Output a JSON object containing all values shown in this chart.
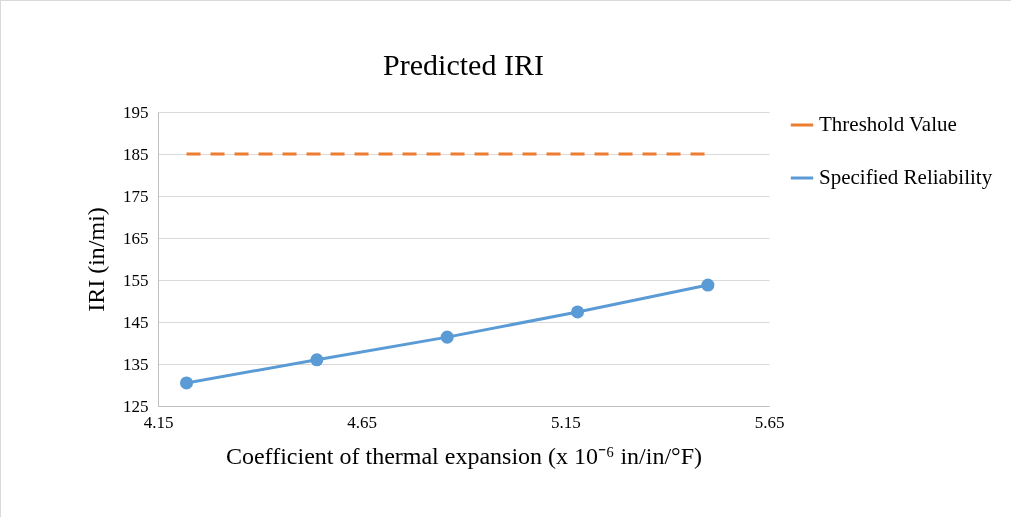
{
  "chart_data": {
    "type": "line",
    "title": "Predicted IRI",
    "xlabel": "Coefficient of thermal expansion (x 10⁻⁶ in/in/°F)",
    "ylabel": "IRI (in/mi)",
    "series": [
      {
        "name": "Threshold Value",
        "color": "#ed7d31",
        "line_style": "dashed",
        "marker": "none",
        "x": [
          4.22,
          4.54,
          4.86,
          5.18,
          5.5
        ],
        "values": [
          185,
          185,
          185,
          185,
          185
        ]
      },
      {
        "name": "Specified Reliability",
        "color": "#5b9bd5",
        "line_style": "solid",
        "marker": "circle",
        "x": [
          4.22,
          4.54,
          4.86,
          5.18,
          5.5
        ],
        "values": [
          130.5,
          136,
          141.4,
          147.4,
          153.8
        ]
      }
    ],
    "xlim": [
      4.15,
      5.65
    ],
    "xticks": [
      4.15,
      4.65,
      5.15,
      5.65
    ],
    "ylim": [
      125,
      195
    ],
    "yticks": [
      125,
      135,
      145,
      155,
      165,
      175,
      185,
      195
    ],
    "grid": "y",
    "legend": "right"
  }
}
